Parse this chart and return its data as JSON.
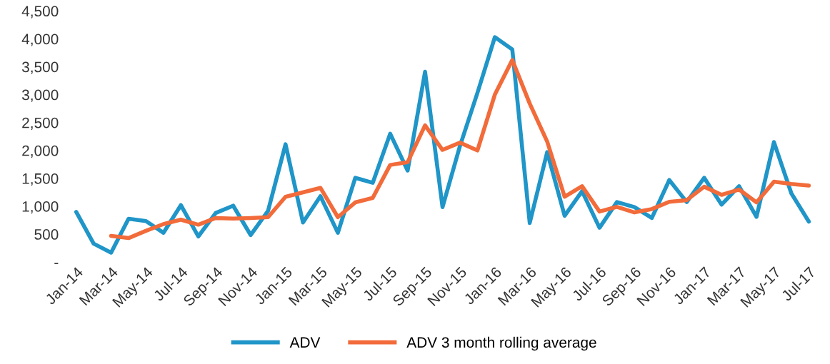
{
  "chart_data": {
    "type": "line",
    "categories": [
      "Jan-14",
      null,
      "Mar-14",
      null,
      "May-14",
      null,
      "Jul-14",
      null,
      "Sep-14",
      null,
      "Nov-14",
      null,
      "Jan-15",
      null,
      "Mar-15",
      null,
      "May-15",
      null,
      "Jul-15",
      null,
      "Sep-15",
      null,
      "Nov-15",
      null,
      "Jan-16",
      null,
      "Mar-16",
      null,
      "May-16",
      null,
      "Jul-16",
      null,
      "Sep-16",
      null,
      "Nov-16",
      null,
      "Jan-17",
      null,
      "Mar-17",
      null,
      "May-17",
      null,
      "Jul-17"
    ],
    "series": [
      {
        "name": "ADV",
        "color": "#1f95c8",
        "values": [
          900,
          330,
          170,
          775,
          735,
          525,
          1020,
          460,
          880,
          1010,
          485,
          920,
          2110,
          710,
          1180,
          525,
          1510,
          1420,
          2300,
          1640,
          3410,
          985,
          2080,
          3030,
          4030,
          3810,
          700,
          1970,
          830,
          1270,
          615,
          1075,
          985,
          790,
          1470,
          1075,
          1510,
          1030,
          1360,
          810,
          2150,
          1230,
          725
        ]
      },
      {
        "name": "ADV 3 month rolling average",
        "color": "#f26b3a",
        "values": [
          null,
          null,
          470,
          430,
          560,
          680,
          760,
          670,
          790,
          780,
          790,
          805,
          1170,
          1250,
          1330,
          805,
          1070,
          1150,
          1740,
          1790,
          2450,
          2010,
          2140,
          2000,
          3000,
          3620,
          2840,
          2160,
          1170,
          1360,
          905,
          990,
          890,
          950,
          1080,
          1110,
          1350,
          1205,
          1300,
          1070,
          1440,
          1400,
          1370
        ]
      }
    ],
    "ylim": [
      0,
      4500
    ],
    "yticks": [
      {
        "value": 0,
        "label": "-"
      },
      {
        "value": 500,
        "label": "500"
      },
      {
        "value": 1000,
        "label": "1,000"
      },
      {
        "value": 1500,
        "label": "1,500"
      },
      {
        "value": 2000,
        "label": "2,000"
      },
      {
        "value": 2500,
        "label": "2,500"
      },
      {
        "value": 3000,
        "label": "3,000"
      },
      {
        "value": 3500,
        "label": "3,500"
      },
      {
        "value": 4000,
        "label": "4,000"
      },
      {
        "value": 4500,
        "label": "4,500"
      }
    ],
    "grid": false,
    "legend": "bottom",
    "marker": "none",
    "line_style": "solid"
  }
}
